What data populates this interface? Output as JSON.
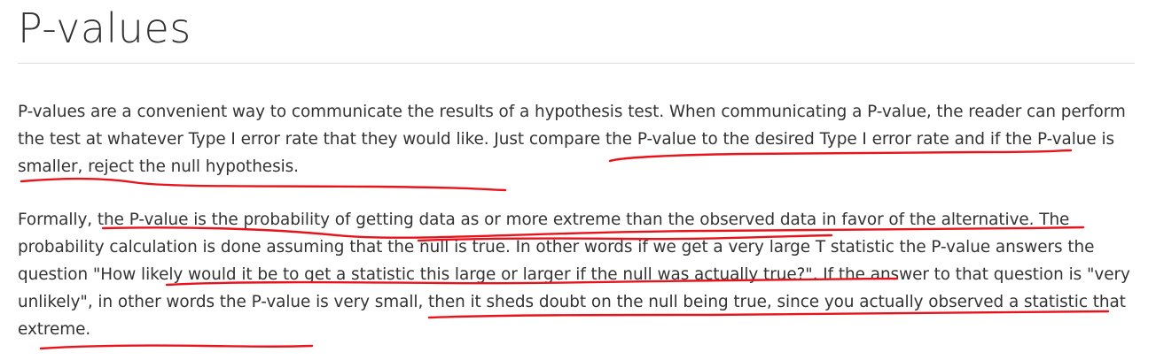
{
  "heading": "P-values",
  "paragraphs": [
    "P-values are a convenient way to communicate the results of a hypothesis test. When communicating a P-value, the reader can perform the test at whatever Type I error rate that they would like. Just compare the P-value to the desired Type I error rate and if the P-value is smaller, reject the null hypothesis.",
    "Formally, the P-value is the probability of getting data as or more extreme than the observed data in favor of the alternative. The probability calculation is done assuming that the null is true. In other words if we get a very large T statistic the P-value answers the question \"How likely would it be to get a statistic this large or larger if the null was actually true?\". If the answer to that question is \"very unlikely\", in other words the P-value is very small, then it sheds doubt on the null being true, since you actually observed a statistic that extreme."
  ],
  "annotation_color": "#e8141c"
}
